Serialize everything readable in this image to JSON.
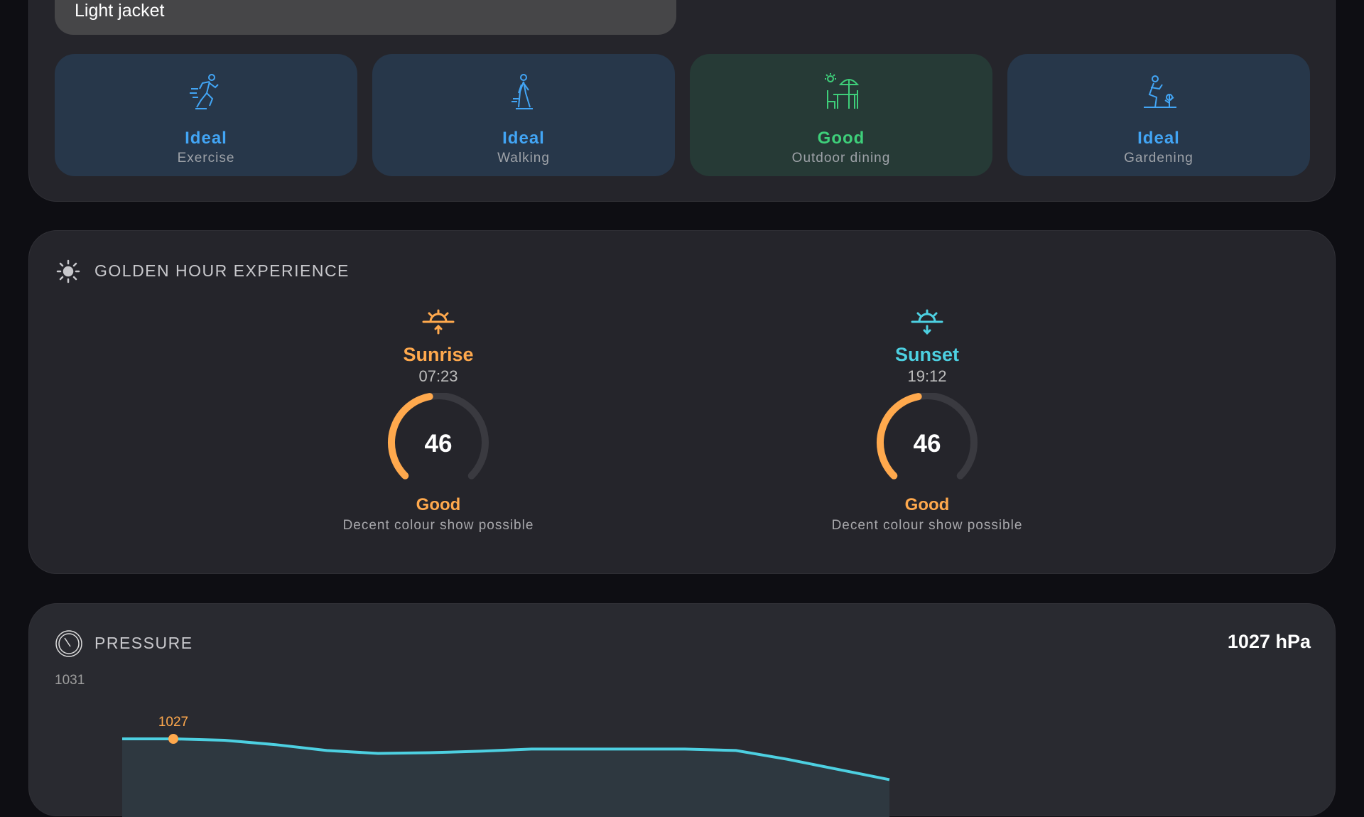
{
  "clothing": {
    "text": "Light jacket"
  },
  "activities": [
    {
      "status": "Ideal",
      "label": "Exercise",
      "icon": "running-icon",
      "color": "#42a5f5",
      "bg": "#27374a"
    },
    {
      "status": "Ideal",
      "label": "Walking",
      "icon": "walking-icon",
      "color": "#42a5f5",
      "bg": "#27374a"
    },
    {
      "status": "Good",
      "label": "Outdoor dining",
      "icon": "outdoor-dining-icon",
      "color": "#3ecf7a",
      "bg": "#263a36"
    },
    {
      "status": "Ideal",
      "label": "Gardening",
      "icon": "gardening-icon",
      "color": "#42a5f5",
      "bg": "#27374a"
    }
  ],
  "golden_hour": {
    "title": "GOLDEN HOUR EXPERIENCE",
    "sunrise": {
      "name": "Sunrise",
      "time": "07:23",
      "score": 46,
      "quality": "Good",
      "description": "Decent colour show possible",
      "color": "#ffa94d"
    },
    "sunset": {
      "name": "Sunset",
      "time": "19:12",
      "score": 46,
      "quality": "Good",
      "description": "Decent colour show possible",
      "color": "#4dd0e1"
    }
  },
  "pressure": {
    "title": "PRESSURE",
    "current": "1027 hPa",
    "y_max_label": "1031",
    "marker_label": "1027",
    "chart_data": {
      "type": "area",
      "values": [
        1027,
        1027,
        1026.9,
        1026.6,
        1026.2,
        1026.0,
        1026.05,
        1026.15,
        1026.3,
        1026.3,
        1026.3,
        1026.3,
        1026.2,
        1025.6,
        1024.9,
        1024.2
      ],
      "ymax": 1031,
      "highlight_index": 1,
      "line_color": "#4dd0e1",
      "marker_color": "#ffa94d"
    }
  }
}
